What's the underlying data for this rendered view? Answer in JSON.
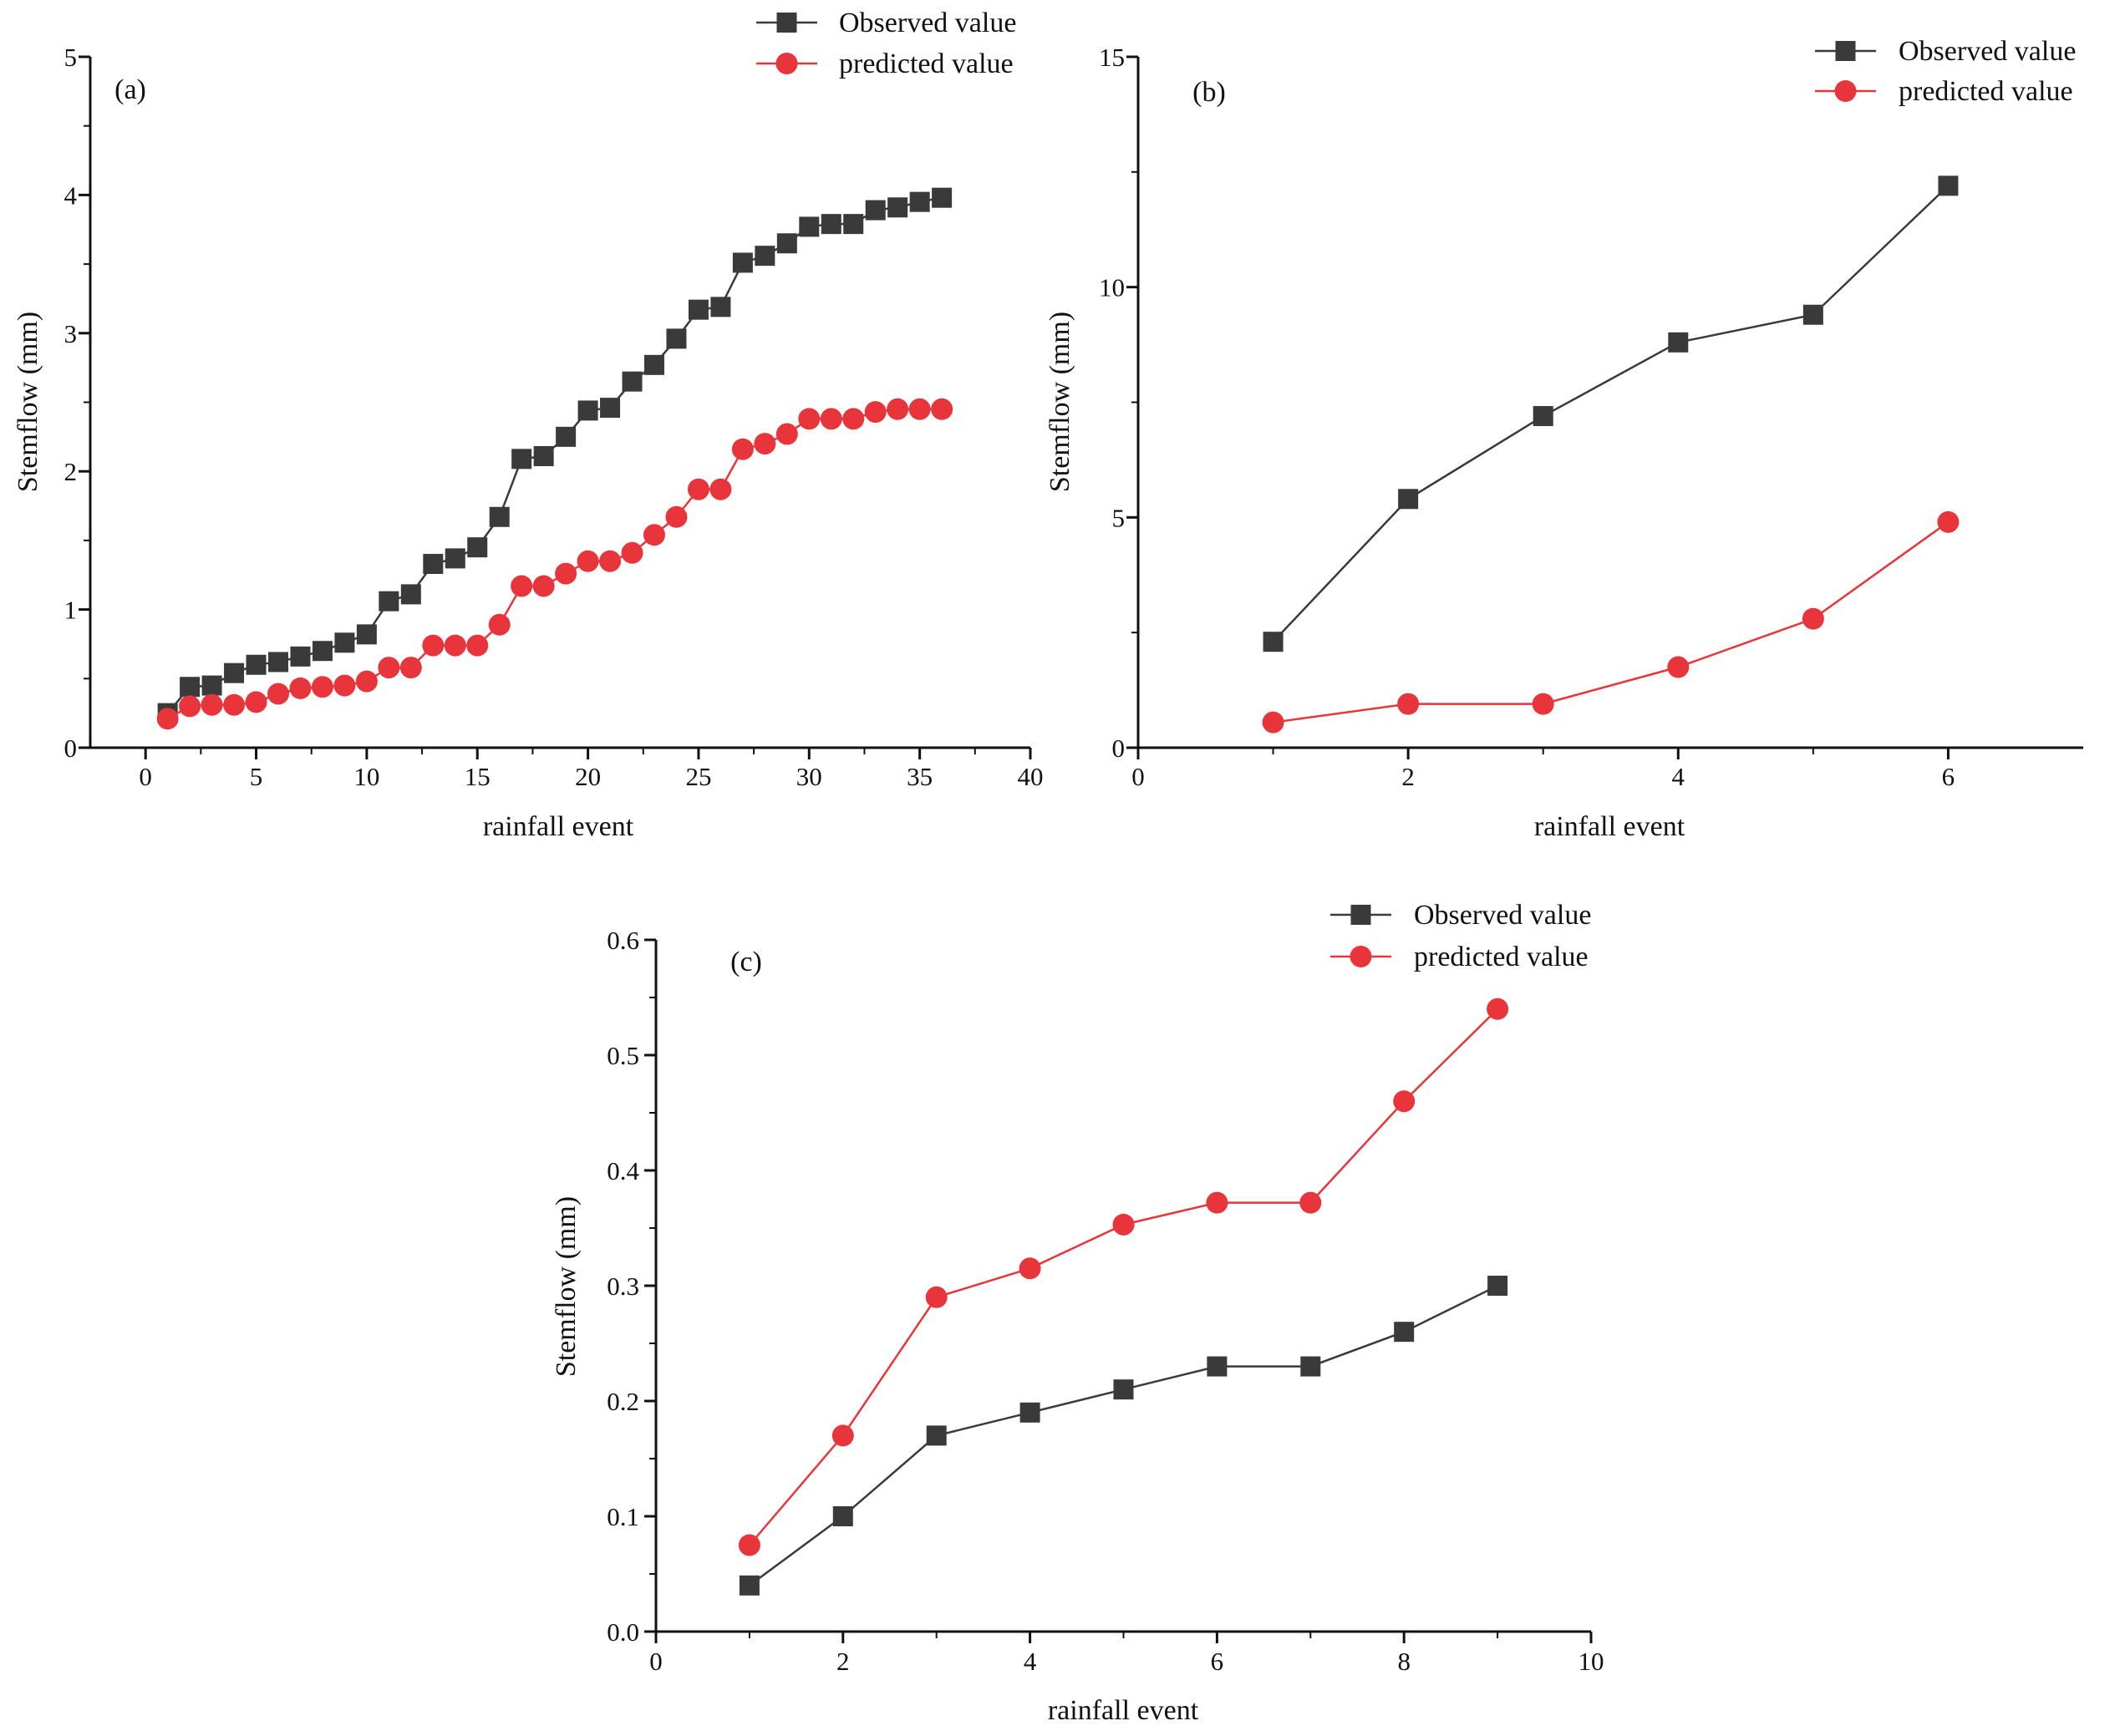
{
  "colors": {
    "observed": "#3a3a3a",
    "predicted": "#e8353b",
    "axis": "#111111"
  },
  "chart_data": [
    {
      "type": "line",
      "panel_label": "(a)",
      "xlabel": "rainfall event",
      "ylabel": "Stemflow (mm)",
      "xlim": [
        -2.5,
        40
      ],
      "ylim": [
        0,
        5
      ],
      "xticks": [
        0,
        5,
        10,
        15,
        20,
        25,
        30,
        35,
        40
      ],
      "yticks": [
        0,
        1,
        2,
        3,
        4,
        5
      ],
      "legend_position": "top-right",
      "x": [
        1,
        2,
        3,
        4,
        5,
        6,
        7,
        8,
        9,
        10,
        11,
        12,
        13,
        14,
        15,
        16,
        17,
        18,
        19,
        20,
        21,
        22,
        23,
        24,
        25,
        26,
        27,
        28,
        29,
        30,
        31,
        32,
        33,
        34,
        35,
        36
      ],
      "series": [
        {
          "name": "Observed value",
          "marker": "square",
          "values": [
            0.25,
            0.44,
            0.45,
            0.54,
            0.6,
            0.62,
            0.66,
            0.7,
            0.76,
            0.82,
            1.06,
            1.11,
            1.33,
            1.37,
            1.45,
            1.67,
            2.09,
            2.11,
            2.25,
            2.44,
            2.46,
            2.65,
            2.77,
            2.96,
            3.17,
            3.19,
            3.51,
            3.56,
            3.65,
            3.77,
            3.79,
            3.79,
            3.89,
            3.91,
            3.95,
            3.98
          ]
        },
        {
          "name": "predicted value",
          "marker": "circle",
          "values": [
            0.21,
            0.3,
            0.31,
            0.31,
            0.33,
            0.39,
            0.43,
            0.44,
            0.45,
            0.48,
            0.58,
            0.58,
            0.74,
            0.74,
            0.74,
            0.89,
            1.17,
            1.17,
            1.26,
            1.35,
            1.35,
            1.41,
            1.54,
            1.67,
            1.87,
            1.87,
            2.16,
            2.2,
            2.27,
            2.38,
            2.38,
            2.38,
            2.43,
            2.45,
            2.45,
            2.45
          ]
        }
      ]
    },
    {
      "type": "line",
      "panel_label": "(b)",
      "xlabel": "rainfall event",
      "ylabel": "Stemflow (mm)",
      "xlim": [
        0,
        7
      ],
      "ylim": [
        0,
        15
      ],
      "xticks": [
        0,
        2,
        4,
        6
      ],
      "yticks": [
        0,
        5,
        10,
        15
      ],
      "legend_position": "top-right",
      "x": [
        1,
        2,
        3,
        4,
        5,
        6
      ],
      "series": [
        {
          "name": "Observed value",
          "marker": "square",
          "values": [
            2.3,
            5.4,
            7.2,
            8.8,
            9.4,
            12.2
          ]
        },
        {
          "name": "predicted value",
          "marker": "circle",
          "values": [
            0.55,
            0.95,
            0.95,
            1.75,
            2.8,
            4.9
          ]
        }
      ]
    },
    {
      "type": "line",
      "panel_label": "(c)",
      "xlabel": "rainfall event",
      "ylabel": "Stemflow (mm)",
      "xlim": [
        0,
        10
      ],
      "ylim": [
        0,
        0.6
      ],
      "xticks": [
        0,
        2,
        4,
        6,
        8,
        10
      ],
      "yticks": [
        "0.0",
        "0.1",
        "0.2",
        "0.3",
        "0.4",
        "0.5",
        "0.6"
      ],
      "legend_position": "top-right",
      "x": [
        1,
        2,
        3,
        4,
        5,
        6,
        7,
        8,
        9
      ],
      "series": [
        {
          "name": "Observed value",
          "marker": "square",
          "values": [
            0.04,
            0.1,
            0.17,
            0.19,
            0.21,
            0.23,
            0.23,
            0.26,
            0.3
          ]
        },
        {
          "name": "predicted value",
          "marker": "circle",
          "values": [
            0.075,
            0.17,
            0.29,
            0.315,
            0.353,
            0.372,
            0.372,
            0.46,
            0.54
          ]
        }
      ]
    }
  ]
}
